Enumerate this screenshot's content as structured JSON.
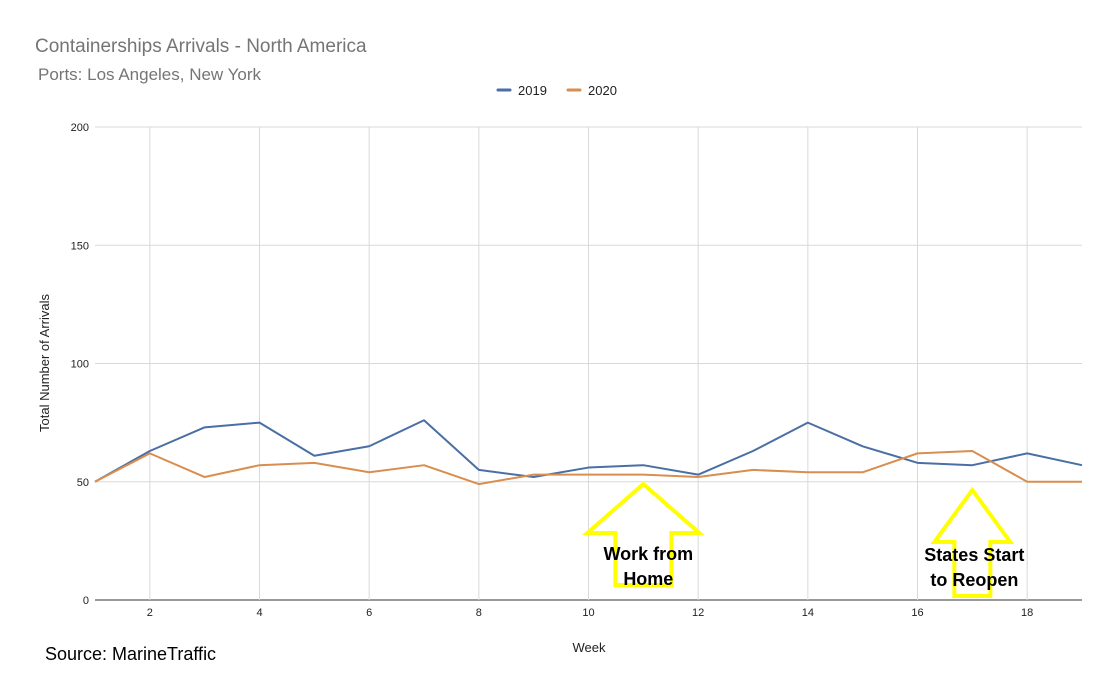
{
  "chart_data": {
    "type": "line",
    "title": "Containerships Arrivals - North America",
    "subtitle": "Ports: Los Angeles, New York",
    "xlabel": "Week",
    "ylabel": "Total Number of Arrivals",
    "x": [
      1,
      2,
      3,
      4,
      5,
      6,
      7,
      8,
      9,
      10,
      11,
      12,
      13,
      14,
      15,
      16,
      17,
      18,
      19
    ],
    "xlim": [
      1,
      19
    ],
    "ylim": [
      0,
      200
    ],
    "x_ticks": [
      2,
      4,
      6,
      8,
      10,
      12,
      14,
      16,
      18
    ],
    "y_ticks": [
      0,
      50,
      100,
      150,
      200
    ],
    "grid": true,
    "legend_position": "top-center",
    "series": [
      {
        "name": "2019",
        "color": "#4a6fa5",
        "values": [
          50,
          63,
          73,
          75,
          61,
          65,
          76,
          55,
          52,
          56,
          57,
          53,
          63,
          75,
          65,
          58,
          57,
          62,
          57
        ]
      },
      {
        "name": "2020",
        "color": "#d98e4f",
        "values": [
          50,
          62,
          52,
          57,
          58,
          54,
          57,
          49,
          53,
          53,
          53,
          52,
          55,
          54,
          54,
          62,
          63,
          50,
          50
        ]
      }
    ],
    "annotations": [
      {
        "lines": [
          "Work from",
          "Home"
        ],
        "week": 11,
        "arrow_color": "#ffff00"
      },
      {
        "lines": [
          "States Start",
          "to Reopen"
        ],
        "week": 17,
        "arrow_color": "#ffff00"
      }
    ],
    "source": "Source: MarineTraffic"
  }
}
